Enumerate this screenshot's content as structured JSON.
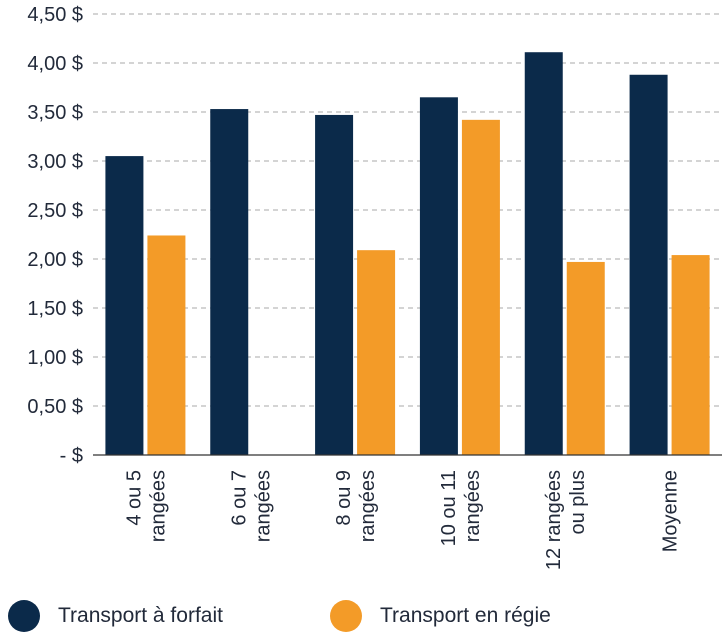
{
  "chart_data": {
    "type": "bar",
    "categories": [
      [
        "4 ou 5",
        "rangées"
      ],
      [
        "6 ou 7",
        "rangées"
      ],
      [
        "8 ou 9",
        "rangées"
      ],
      [
        "10 ou 11",
        "rangées"
      ],
      [
        "12 rangées",
        "ou plus"
      ],
      [
        "Moyenne"
      ]
    ],
    "series": [
      {
        "name": "Transport à forfait",
        "color": "#0b2a4a",
        "values": [
          3.05,
          3.53,
          3.47,
          3.65,
          4.11,
          3.88
        ]
      },
      {
        "name": "Transport en régie",
        "color": "#f39b28",
        "values": [
          2.24,
          null,
          2.09,
          3.42,
          1.97,
          2.04
        ]
      }
    ],
    "ylim": [
      0,
      4.5
    ],
    "y_ticks": [
      {
        "value": 4.5,
        "label": "4,50 $"
      },
      {
        "value": 4.0,
        "label": "4,00 $"
      },
      {
        "value": 3.5,
        "label": "3,50 $"
      },
      {
        "value": 3.0,
        "label": "3,00 $"
      },
      {
        "value": 2.5,
        "label": "2,50 $"
      },
      {
        "value": 2.0,
        "label": "2,00 $"
      },
      {
        "value": 1.5,
        "label": "1,50 $"
      },
      {
        "value": 1.0,
        "label": "1,00 $"
      },
      {
        "value": 0.5,
        "label": "0,50 $"
      },
      {
        "value": 0.0,
        "label": "-   $"
      }
    ],
    "grid": true,
    "legend_position": "bottom-left"
  }
}
